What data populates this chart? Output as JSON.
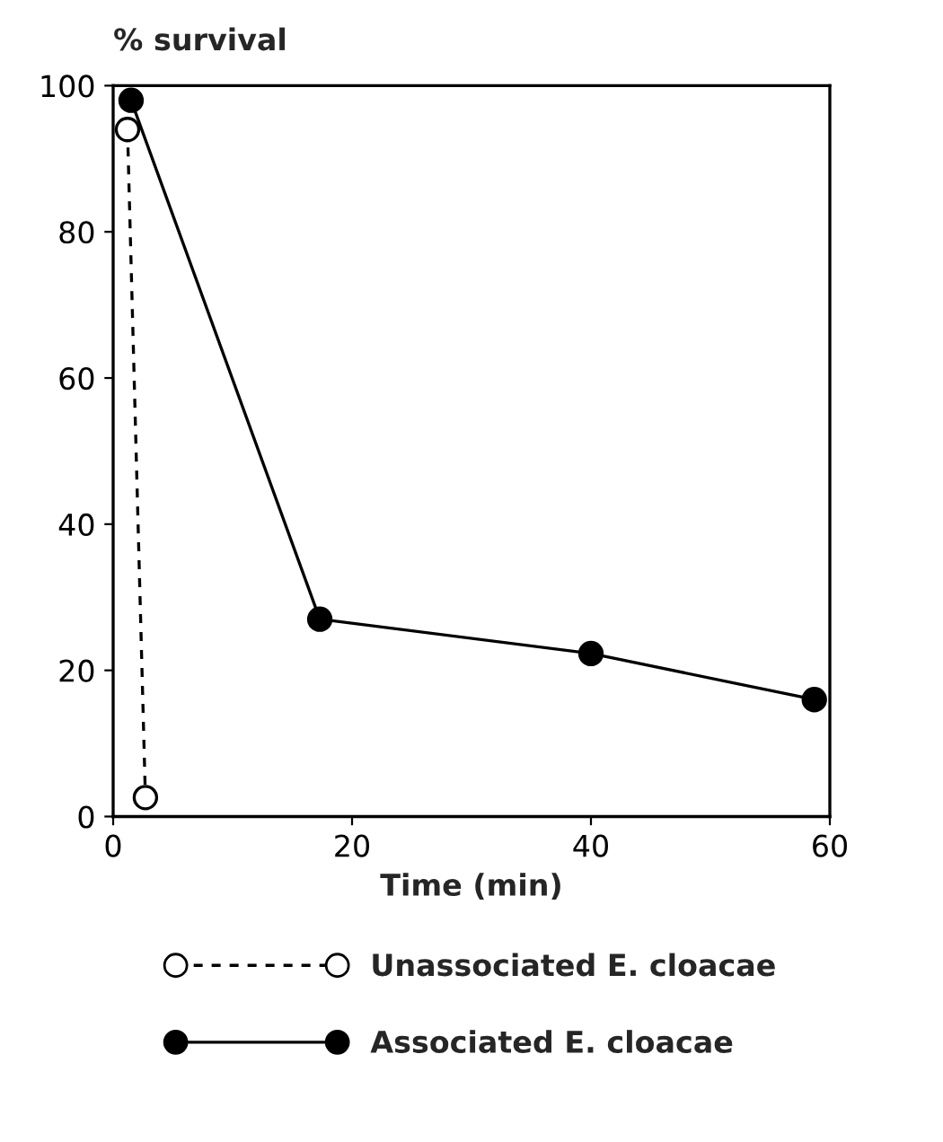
{
  "chart_data": {
    "type": "line",
    "xlabel": "Time (min)",
    "ylabel": "% survival",
    "series": [
      {
        "name": "Unassociated E. cloacae",
        "color": "#000000",
        "colors": [
          "#ffffff",
          "#ffffff"
        ],
        "marker": "circle",
        "line_style": "dashed",
        "x": [
          1.2,
          2.7
        ],
        "values": [
          94,
          2.6
        ]
      },
      {
        "name": "Associated E. cloacae",
        "color": "#000000",
        "colors": [
          "#000000",
          "#000000",
          "#000000",
          "#000000"
        ],
        "marker": "circle",
        "line_style": "solid",
        "x": [
          1.5,
          17.3,
          40,
          58.7
        ],
        "values": [
          98,
          27,
          22.3,
          16
        ]
      }
    ],
    "xlim": [
      0,
      60
    ],
    "xticks": [
      0,
      20,
      40,
      60
    ],
    "ylim": [
      0,
      100
    ],
    "yticks": [
      0,
      20,
      40,
      60,
      80,
      100
    ],
    "grid": false,
    "legend": "bottom"
  }
}
